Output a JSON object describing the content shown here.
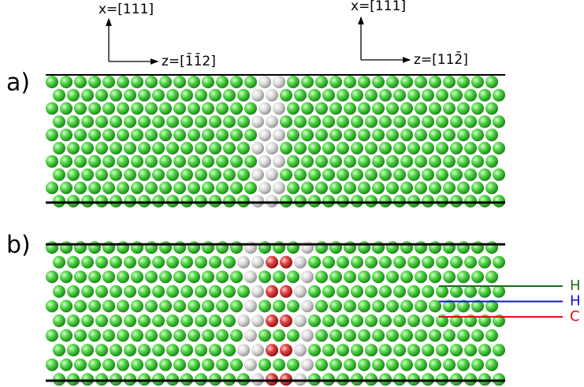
{
  "axes_left": {
    "x_label": "x=[111]",
    "z_label": "z=[1̄1̄2]"
  },
  "axes_right": {
    "x_label": "x=[111]",
    "z_label": "z=[112̄]"
  },
  "panels": [
    {
      "label": "a)"
    },
    {
      "label": "b)"
    }
  ],
  "legend": [
    {
      "label": "H",
      "color": "#1a6b1a"
    },
    {
      "label": "H",
      "color": "#1010e0"
    },
    {
      "label": "C",
      "color": "#e01010"
    }
  ]
}
